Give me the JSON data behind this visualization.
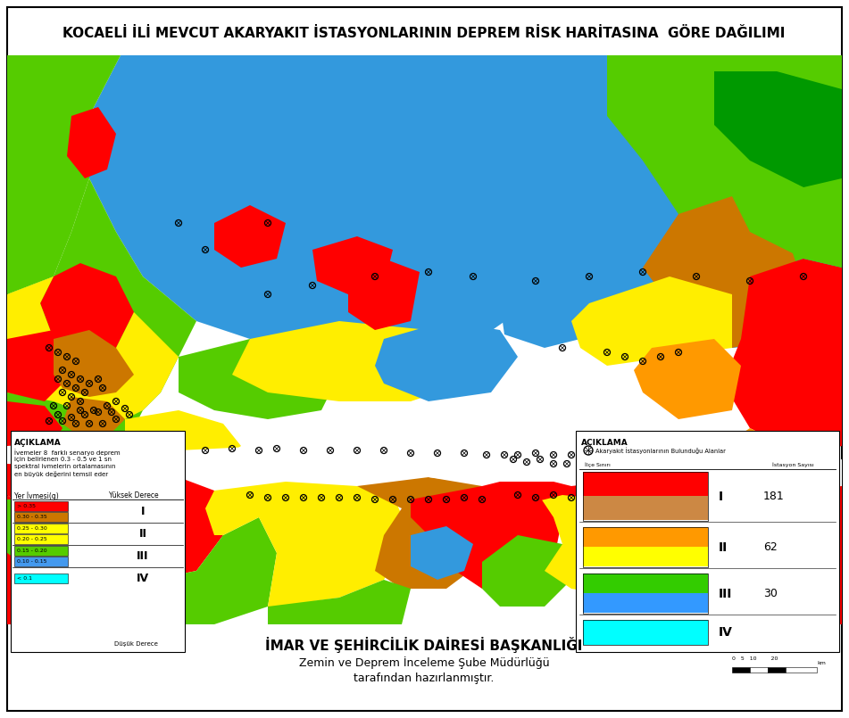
{
  "title": "KOCAELİ İLİ MEVCUT AKARYAKIT İSTASYONLARININ DEPREM RİSK HARİTASINA  GÖRE DAĞILIMI",
  "footer_line1": "İMAR VE ŞEHİRCİLİK DAİRESİ BAŞKANLIĞI",
  "footer_line2": "Zemin ve Deprem İnceleme Şube Müdürlüğü",
  "footer_line3": "tarafından hazırlanmıştır.",
  "legend_title_left": "AÇIKLAMA",
  "legend_desc": "İvemeler 8  farklı senaryo deprem\niçin belirlenen 0.3 - 0.5 ve 1 sn\nspektral ivmelerin ortalamasının\nen büyük değerini temsil eder",
  "legend_col1_header": "Yer İvmesi(g)",
  "legend_col2_header": "Yüksek Derece",
  "legend_footer_left": "Düşük Derece",
  "legend_items_left": [
    {
      "label": "> 0.35",
      "color": "#FF0000"
    },
    {
      "label": "0.30 - 0.35",
      "color": "#CC7700"
    },
    {
      "label": "0.25 - 0.30",
      "color": "#FFFF00"
    },
    {
      "label": "0.20 - 0.25",
      "color": "#FFFF00"
    },
    {
      "label": "0.15 - 0.20",
      "color": "#55CC00"
    },
    {
      "label": "0.10 - 0.15",
      "color": "#4499EE"
    },
    {
      "label": "< 0.1",
      "color": "#00FFFF"
    }
  ],
  "left_roman_groups": [
    {
      "roman": "I",
      "rows": [
        0,
        1
      ]
    },
    {
      "roman": "II",
      "rows": [
        2,
        3
      ]
    },
    {
      "roman": "III",
      "rows": [
        4,
        5
      ]
    },
    {
      "roman": "IV",
      "rows": [
        6
      ]
    }
  ],
  "legend_right_title": "AÇIKLAMA",
  "right_symbol_label": "Akaryakıt İstasyonlarının Bulunduğu Alanlar",
  "right_col1": "İlçe Sınırı",
  "right_col2": "İstasyon Sayısı",
  "right_items": [
    {
      "colors": [
        "#FF0000",
        "#CC8844"
      ],
      "roman": "I",
      "count": "181"
    },
    {
      "colors": [
        "#FF9900",
        "#FFFF00"
      ],
      "roman": "II",
      "count": "62"
    },
    {
      "colors": [
        "#33CC00",
        "#3399FF"
      ],
      "roman": "III",
      "count": "30"
    },
    {
      "colors": [
        "#00FFFF"
      ],
      "roman": "IV",
      "count": ""
    }
  ],
  "map_colors": {
    "green_light": "#55CC00",
    "green_dark": "#009900",
    "blue_med": "#3399DD",
    "blue_deep": "#2266BB",
    "yellow": "#FFEE00",
    "orange": "#FF9900",
    "orange_brown": "#CC7700",
    "red": "#FF0000",
    "cyan": "#00CCCC",
    "white": "#FFFFFF"
  },
  "bg_color": "#FFFFFF",
  "title_fontsize": 11,
  "footer1_fontsize": 11,
  "footer2_fontsize": 9,
  "footer3_fontsize": 9
}
